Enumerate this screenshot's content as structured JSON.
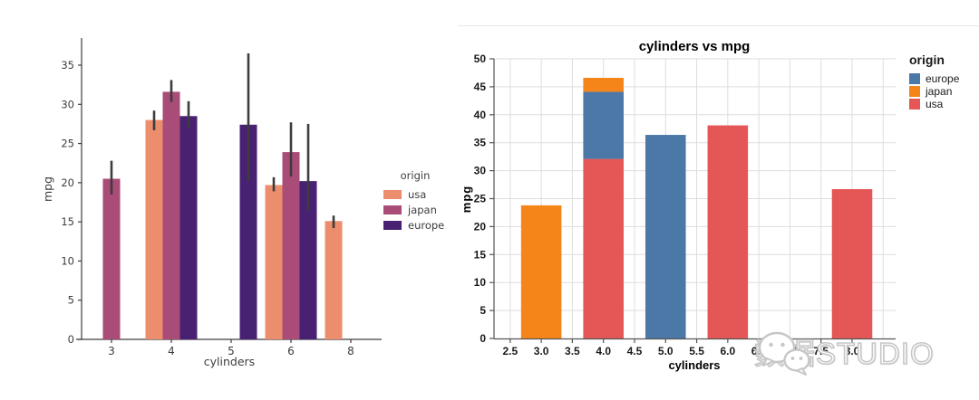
{
  "watermark": {
    "text": "数据STUDIO",
    "icon": "wechat-icon",
    "color": "#c7c7c7"
  },
  "chart_data": [
    {
      "id": "left-grouped-bar",
      "type": "bar",
      "style": "seaborn-grouped-bar-with-errorbars",
      "title": "",
      "xlabel": "cylinders",
      "ylabel": "mpg",
      "categories": [
        "3",
        "4",
        "5",
        "6",
        "8"
      ],
      "yticks": [
        0,
        5,
        10,
        15,
        20,
        25,
        30,
        35
      ],
      "ylim": [
        0,
        38.5
      ],
      "grid": false,
      "axis_color": "#3d3d3d",
      "error_bar_color": "#3d3d3d",
      "legend": {
        "title": "origin",
        "position": "right"
      },
      "series": [
        {
          "name": "usa",
          "color": "#ec8d6e",
          "values": [
            null,
            28.0,
            null,
            19.7,
            15.1
          ],
          "errors": [
            null,
            [
              26.7,
              29.2
            ],
            null,
            [
              18.9,
              20.7
            ],
            [
              14.2,
              15.8
            ]
          ]
        },
        {
          "name": "japan",
          "color": "#a94c77",
          "values": [
            20.5,
            31.6,
            null,
            23.9,
            null
          ],
          "errors": [
            [
              18.5,
              22.8
            ],
            [
              30.3,
              33.1
            ],
            null,
            [
              20.8,
              27.7
            ],
            null
          ]
        },
        {
          "name": "europe",
          "color": "#482173",
          "values": [
            null,
            28.5,
            27.4,
            20.2,
            null
          ],
          "errors": [
            null,
            [
              27.0,
              30.4
            ],
            [
              20.2,
              36.5
            ],
            [
              16.4,
              27.5
            ],
            null
          ]
        }
      ]
    },
    {
      "id": "right-stacked-bar",
      "type": "bar",
      "style": "altair-stacked-bar",
      "title": "cylinders vs mpg",
      "xlabel": "cylinders",
      "ylabel": "mpg",
      "xtick_values": [
        2.5,
        3.0,
        3.5,
        4.0,
        4.5,
        5.0,
        5.5,
        6.0,
        6.5,
        7.0,
        7.5,
        8.0
      ],
      "xtick_labels": [
        "2.5",
        "3.0",
        "3.5",
        "4.0",
        "4.5",
        "5.0",
        "5.5",
        "6.0",
        "6.5",
        "7.0",
        "7.5",
        "8.0"
      ],
      "ytick_values": [
        0,
        5,
        10,
        15,
        20,
        25,
        30,
        35,
        40,
        45,
        50
      ],
      "ytick_labels": [
        "0",
        "5",
        "10",
        "15",
        "20",
        "25",
        "30",
        "35",
        "40",
        "45",
        "50"
      ],
      "xlim": [
        2.24,
        8.7
      ],
      "ylim": [
        0,
        50
      ],
      "grid": true,
      "grid_color": "#dddddd",
      "axis_color": "#555555",
      "bar_width_units": 0.65,
      "colors": {
        "europe": "#4c78a8",
        "japan": "#f58518",
        "usa": "#e45756"
      },
      "legend": {
        "title": "origin",
        "position": "right",
        "entries": [
          {
            "label": "europe",
            "color": "#4c78a8"
          },
          {
            "label": "japan",
            "color": "#f58518"
          },
          {
            "label": "usa",
            "color": "#e45756"
          }
        ]
      },
      "bars": [
        {
          "x": 3.0,
          "segments": [
            {
              "origin": "japan",
              "from": 0,
              "to": 23.8
            }
          ]
        },
        {
          "x": 4.0,
          "segments": [
            {
              "origin": "usa",
              "from": 0,
              "to": 32.1
            },
            {
              "origin": "europe",
              "from": 32.1,
              "to": 44.1
            },
            {
              "origin": "japan",
              "from": 44.1,
              "to": 46.6
            }
          ]
        },
        {
          "x": 5.0,
          "segments": [
            {
              "origin": "europe",
              "from": 0,
              "to": 36.4
            }
          ]
        },
        {
          "x": 6.0,
          "segments": [
            {
              "origin": "usa",
              "from": 0,
              "to": 38.1
            }
          ]
        },
        {
          "x": 8.0,
          "segments": [
            {
              "origin": "usa",
              "from": 0,
              "to": 26.7
            }
          ]
        }
      ]
    }
  ]
}
